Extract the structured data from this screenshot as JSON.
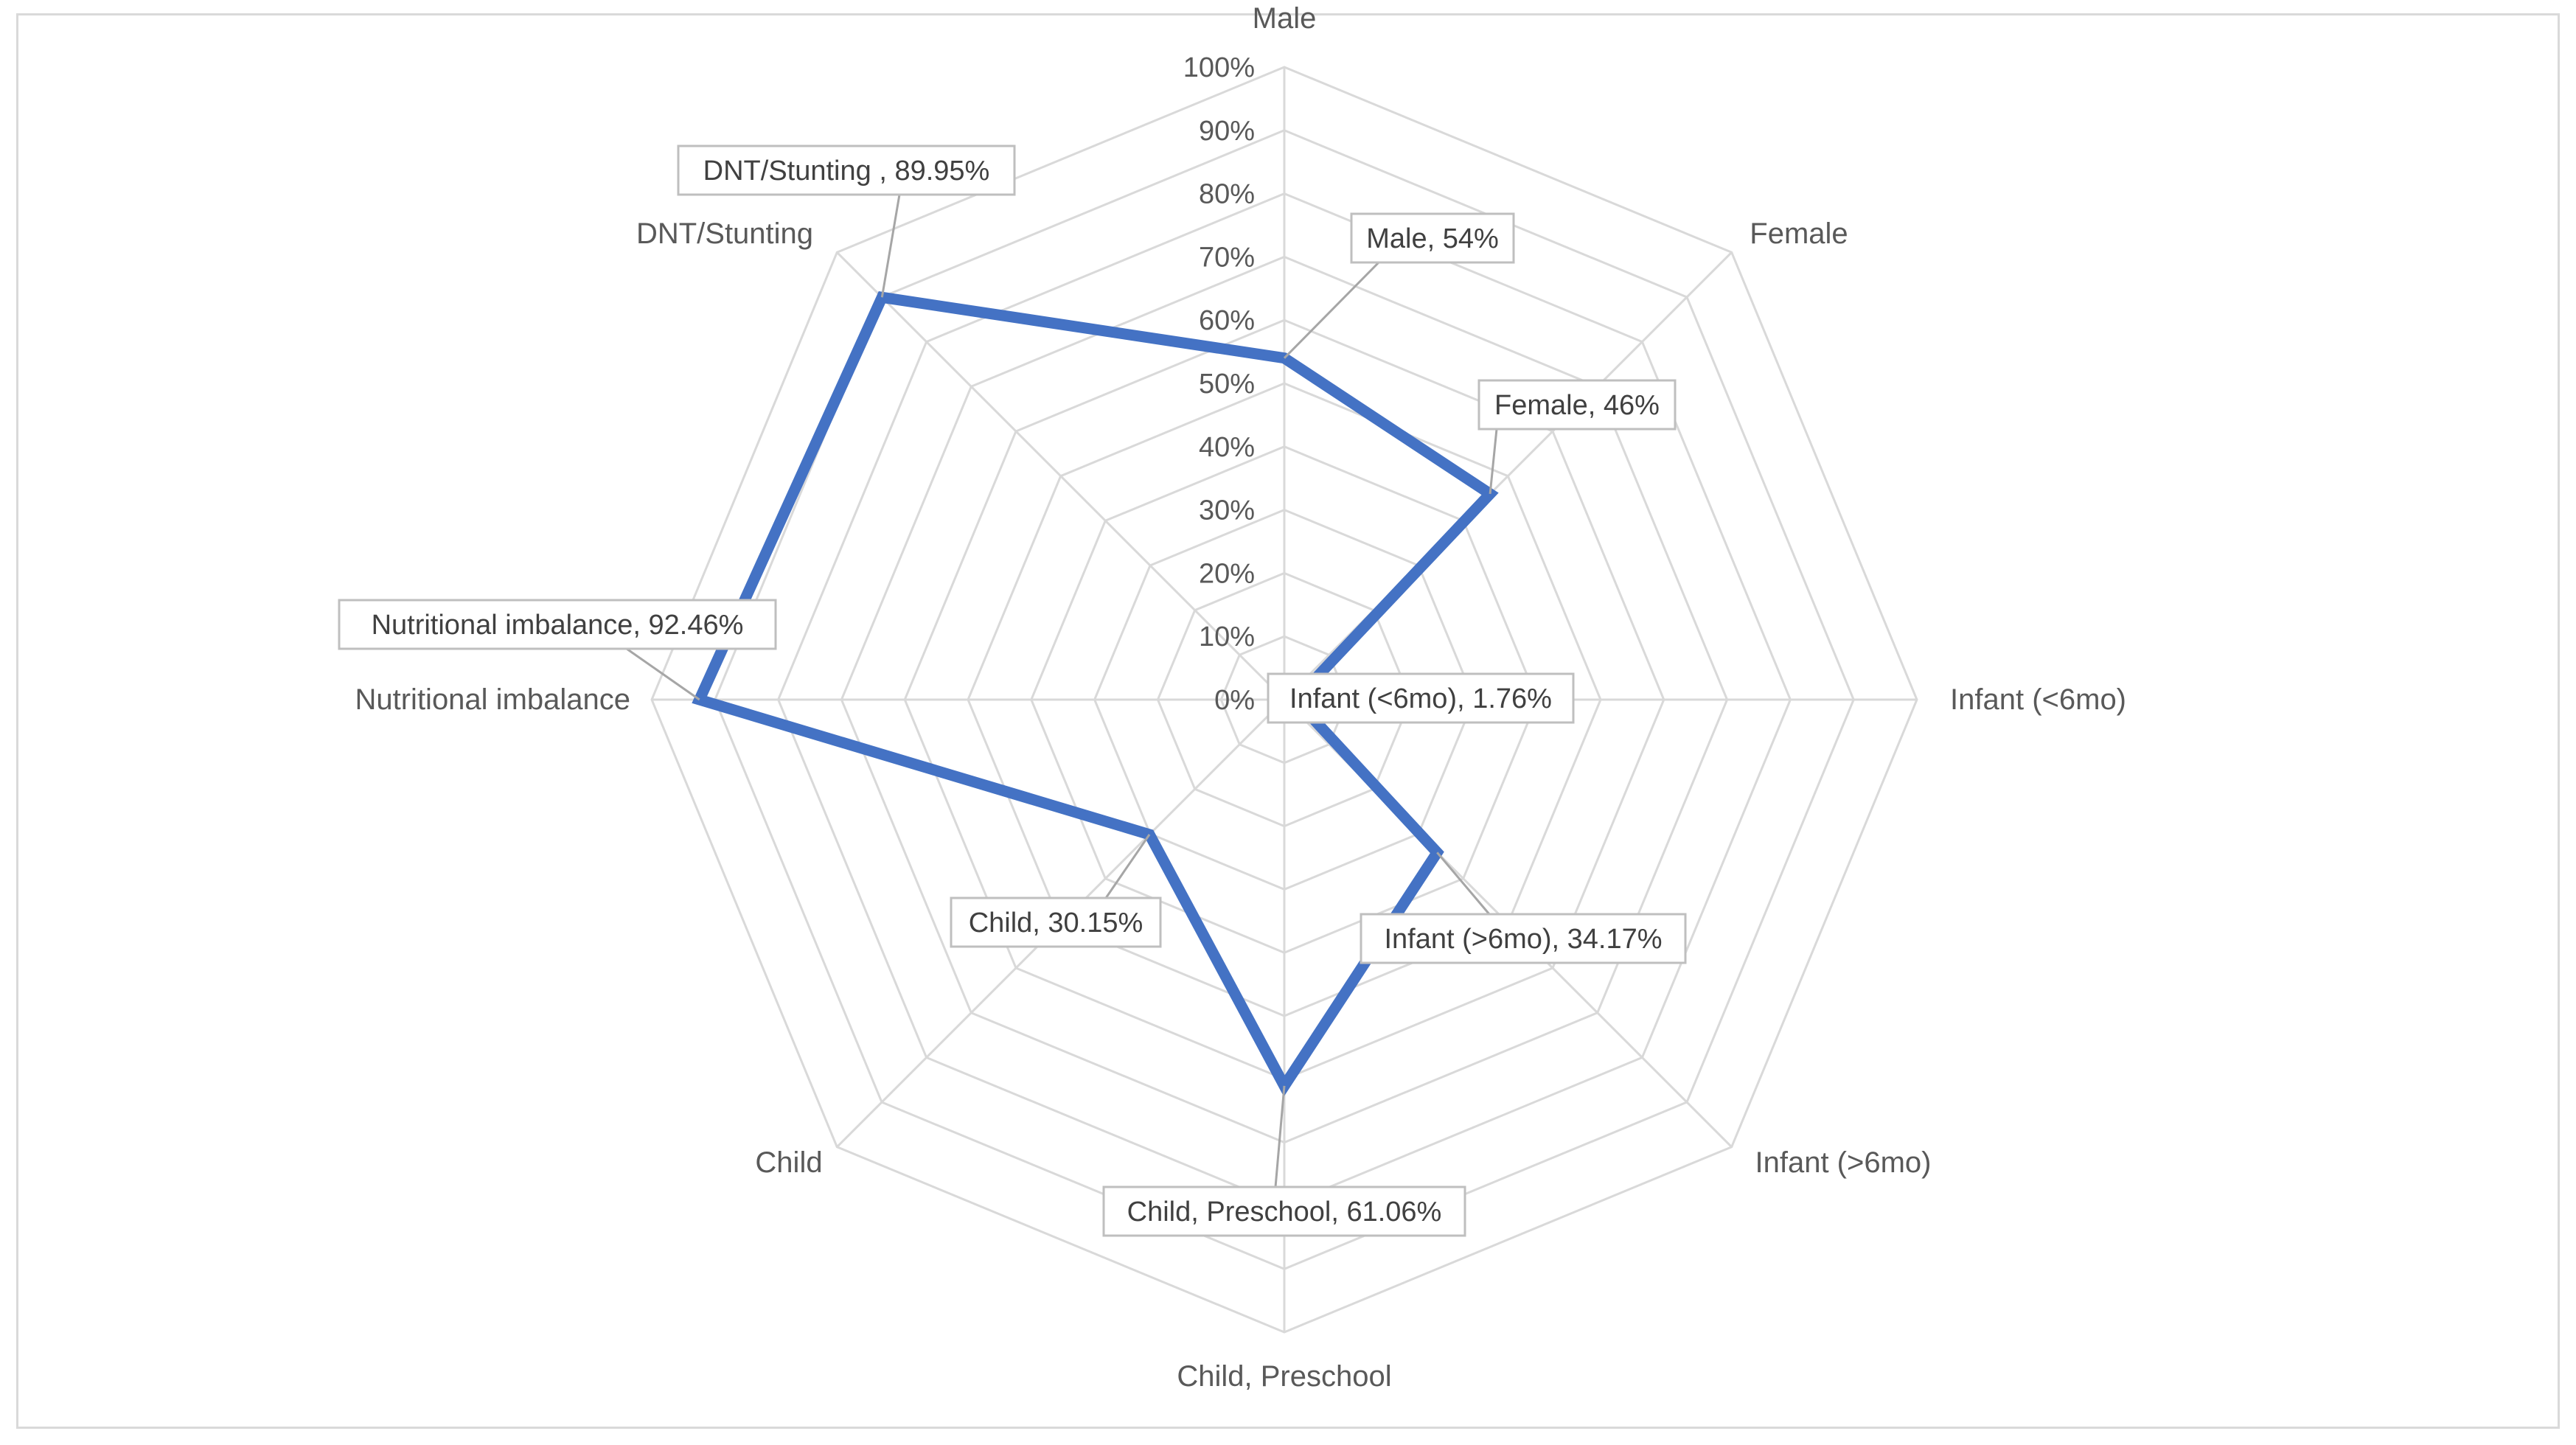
{
  "chart_data": {
    "type": "radar",
    "categories": [
      "Male",
      "Female",
      "Infant (<6mo)",
      "Infant (>6mo)",
      "Child, Preschool",
      "Child",
      "Nutritional imbalance",
      "DNT/Stunting"
    ],
    "series": [
      {
        "values": [
          54,
          46,
          1.76,
          34.17,
          61.06,
          30.15,
          92.46,
          89.95
        ]
      }
    ],
    "data_labels": [
      "Male, 54%",
      "Female, 46%",
      "Infant (<6mo), 1.76%",
      "Infant (>6mo), 34.17%",
      "Child, Preschool, 61.06%",
      "Child, 30.15%",
      "Nutritional imbalance, 92.46%",
      "DNT/Stunting , 89.95%"
    ],
    "r_ticks": [
      "0%",
      "10%",
      "20%",
      "30%",
      "40%",
      "50%",
      "60%",
      "70%",
      "80%",
      "90%",
      "100%"
    ],
    "rlim": [
      0,
      100
    ],
    "grid": true,
    "legend": "none",
    "title": "",
    "colors": {
      "series_line": "#4472c4",
      "grid": "#d9d9d9",
      "text": "#595959",
      "callout_border": "#bfbfbf",
      "leader_line": "#a6a6a6"
    }
  }
}
